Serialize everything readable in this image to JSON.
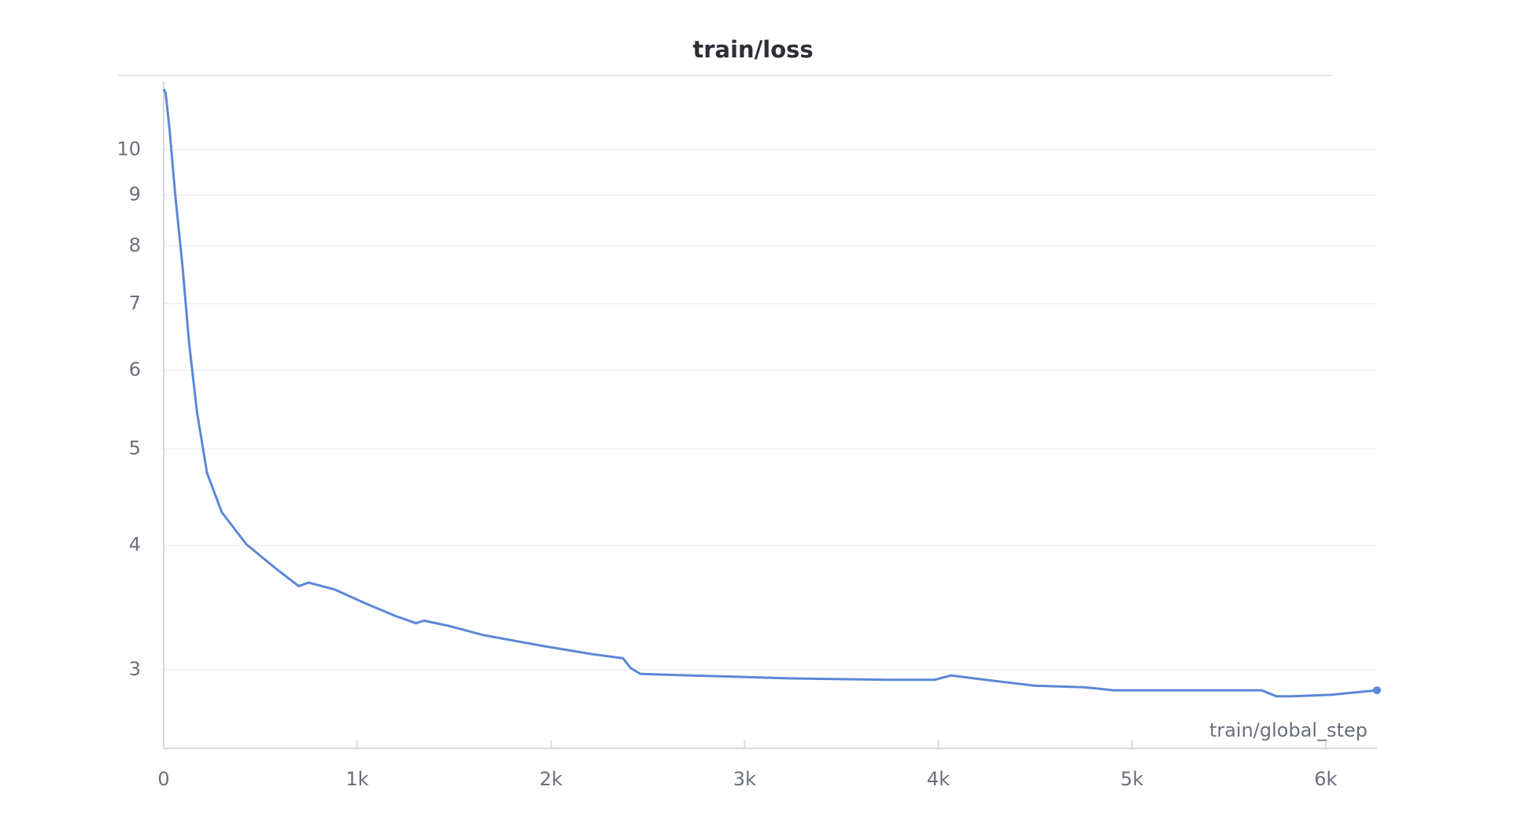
{
  "chart_data": {
    "type": "line",
    "title": "train/loss",
    "x_label": "train/global_step",
    "x": [
      0,
      10,
      30,
      61,
      97,
      132,
      173,
      224,
      300,
      427,
      580,
      697,
      748,
      885,
      1038,
      1191,
      1303,
      1344,
      1471,
      1649,
      1954,
      2209,
      2372,
      2412,
      2463,
      2718,
      3226,
      3735,
      3980,
      4066,
      4244,
      4499,
      4753,
      4906,
      5262,
      5669,
      5746,
      5822,
      6025,
      6265
    ],
    "series": [
      {
        "name": "train/loss",
        "color": "#5b87d8",
        "values": [
          11.5,
          11.4,
          10.5,
          8.96,
          7.64,
          6.37,
          5.43,
          4.73,
          4.32,
          4.01,
          3.79,
          3.64,
          3.67,
          3.61,
          3.5,
          3.4,
          3.34,
          3.36,
          3.32,
          3.25,
          3.17,
          3.11,
          3.08,
          3.01,
          2.97,
          2.96,
          2.94,
          2.93,
          2.93,
          2.96,
          2.93,
          2.89,
          2.88,
          2.86,
          2.86,
          2.86,
          2.82,
          2.82,
          2.83,
          2.86
        ]
      }
    ],
    "xlim": [
      0,
      6265
    ],
    "xticks": [
      0,
      {
        "value": 1000,
        "label": "1k"
      },
      {
        "value": 2000,
        "label": "2k"
      },
      {
        "value": 3000,
        "label": "3k"
      },
      {
        "value": 4000,
        "label": "4k"
      },
      {
        "value": 5000,
        "label": "5k"
      },
      {
        "value": 6000,
        "label": "6k"
      }
    ],
    "ylim": [
      2.5,
      11.7
    ],
    "yticks": [
      3,
      4,
      5,
      6,
      7,
      8,
      9,
      10
    ],
    "log_y": true,
    "grid": true
  }
}
